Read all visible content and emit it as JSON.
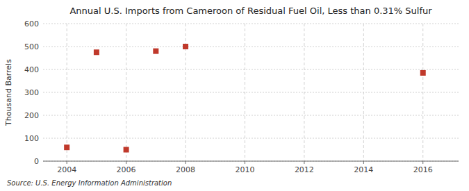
{
  "chart_data": {
    "type": "scatter",
    "title": "Annual U.S. Imports from Cameroon of Residual Fuel Oil, Less than 0.31% Sulfur",
    "ylabel": "Thousand Barrels",
    "annotation": "Source: U.S. Energy Information Administration",
    "x": [
      2004,
      2005,
      2006,
      2007,
      2008,
      2016
    ],
    "values": [
      60,
      475,
      50,
      480,
      500,
      385
    ],
    "color": "#c0392b",
    "marker": "square",
    "xlim": [
      2003.2,
      2017.2
    ],
    "ylim": [
      0,
      600
    ],
    "xticks": [
      2004,
      2006,
      2008,
      2010,
      2012,
      2014,
      2016
    ],
    "yticks": [
      0,
      100,
      200,
      300,
      400,
      500,
      600
    ],
    "grid": true
  }
}
